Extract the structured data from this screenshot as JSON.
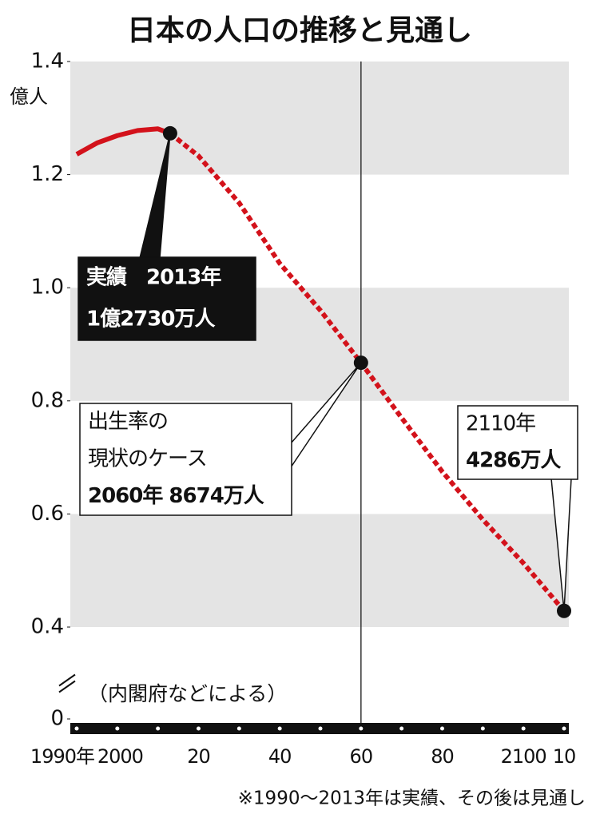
{
  "chart_data": {
    "type": "line",
    "title": "日本の人口の推移と見通し",
    "y_unit": "億人",
    "x": [
      1990,
      1995,
      2000,
      2005,
      2010,
      2013,
      2020,
      2030,
      2040,
      2050,
      2060,
      2070,
      2080,
      2090,
      2100,
      2110
    ],
    "series": [
      {
        "color": "#d3121b",
        "dashed": false,
        "values": [
          1.236,
          1.256,
          1.269,
          1.278,
          1.281,
          1.273,
          null,
          null,
          null,
          null,
          null,
          null,
          null,
          null,
          null,
          null
        ]
      },
      {
        "color": "#d3121b",
        "dashed": true,
        "values": [
          null,
          null,
          null,
          null,
          null,
          1.273,
          1.233,
          1.15,
          1.043,
          0.96,
          0.8674,
          0.77,
          0.675,
          0.59,
          0.513,
          0.4286
        ]
      }
    ],
    "xlim": [
      1990,
      2110
    ],
    "xticks": [
      {
        "value": 1990,
        "label": "1990年"
      },
      2000,
      {
        "value": 2020,
        "label": "20"
      },
      {
        "value": 2040,
        "label": "40"
      },
      {
        "value": 2060,
        "label": "60"
      },
      {
        "value": 2080,
        "label": "80"
      },
      2100,
      {
        "value": 2110,
        "label": "10"
      }
    ],
    "ylim": [
      0.4,
      1.4
    ],
    "yticks": [
      {
        "value": 0,
        "label": "0"
      },
      0.4,
      0.6,
      0.8,
      {
        "value": 1,
        "label": "1.0"
      },
      1.2,
      1.4
    ],
    "axis_break": true,
    "vline": 2060,
    "annotations": [
      {
        "series": 0,
        "index": 5,
        "style": "dark",
        "lines": [
          "実績　2013年",
          "1億2730万人"
        ]
      },
      {
        "series": 1,
        "index": 10,
        "style": "light",
        "lines": [
          "出生率の",
          "現状のケース",
          "2060年 8674万人"
        ]
      },
      {
        "series": 1,
        "index": 15,
        "style": "light",
        "lines": [
          "2110年",
          "4286万人"
        ]
      }
    ],
    "source": "（内閣府などによる）",
    "footnote": "※1990～2013年は実績、その後は見通し"
  }
}
